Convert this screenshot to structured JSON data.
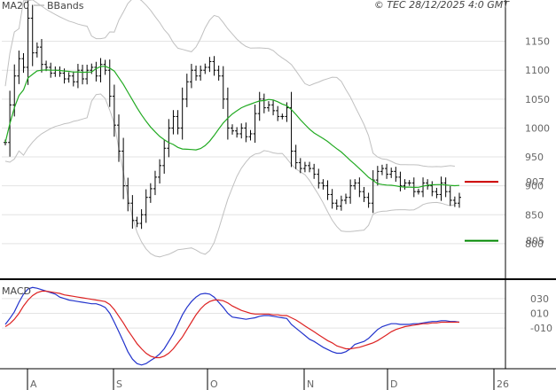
{
  "header": {
    "legend_ma": "MA20",
    "legend_bb": "BBands",
    "copyright": "© TEC 28/12/2025 4:0 GMT"
  },
  "colors": {
    "background": "#ffffff",
    "grid": "#e3e3e3",
    "price_bar": "#000000",
    "ma": "#22aa22",
    "bbands": "#c0c0c0",
    "macd": "#2233cc",
    "signal": "#dd2222",
    "resistance": "#cc0000",
    "support": "#008800",
    "axis": "#000000"
  },
  "chart_data": [
    {
      "type": "ohlc",
      "legend": [
        "MA20",
        "BBands"
      ],
      "ylim": [
        740,
        1200
      ],
      "y_ticks": [
        800,
        850,
        900,
        950,
        1000,
        1050,
        1100,
        1150
      ],
      "x_labels": [
        "A",
        "S",
        "O",
        "N",
        "D",
        "26"
      ],
      "grid": "horizontal",
      "markers": [
        {
          "label": "907",
          "value": 907,
          "color": "#cc0000"
        },
        {
          "label": "805",
          "value": 805,
          "color": "#008800"
        }
      ],
      "close": [
        975,
        1040,
        1090,
        1120,
        1105,
        1190,
        1130,
        1140,
        1110,
        1105,
        1095,
        1100,
        1095,
        1085,
        1090,
        1080,
        1100,
        1085,
        1100,
        1105,
        1090,
        1110,
        1100,
        1055,
        1005,
        960,
        900,
        870,
        840,
        835,
        850,
        880,
        895,
        915,
        935,
        965,
        1000,
        1020,
        1000,
        1050,
        1080,
        1100,
        1090,
        1100,
        1105,
        1115,
        1100,
        1090,
        1050,
        1000,
        995,
        990,
        1000,
        985,
        990,
        1025,
        1050,
        1035,
        1040,
        1030,
        1020,
        1020,
        1035,
        960,
        940,
        930,
        935,
        930,
        920,
        905,
        900,
        885,
        870,
        865,
        875,
        880,
        900,
        905,
        890,
        880,
        870,
        910,
        925,
        930,
        920,
        925,
        915,
        900,
        905,
        905,
        890,
        890,
        905,
        900,
        890,
        885,
        905,
        890,
        875,
        870,
        880
      ]
    },
    {
      "type": "line",
      "title": "MACD",
      "ylim": [
        -65,
        55
      ],
      "y_ticks": [
        30,
        10,
        -10
      ],
      "y_tick_labels": [
        "030",
        "010",
        "-010"
      ],
      "series": [
        {
          "name": "MACD",
          "values": [
            -5,
            3,
            12,
            25,
            36,
            43,
            45,
            44,
            42,
            40,
            38,
            36,
            32,
            30,
            28,
            27,
            26,
            25,
            24,
            23,
            23,
            21,
            18,
            10,
            -2,
            -15,
            -28,
            -42,
            -52,
            -58,
            -60,
            -58,
            -54,
            -50,
            -45,
            -38,
            -28,
            -18,
            -5,
            8,
            18,
            26,
            32,
            36,
            37,
            36,
            32,
            25,
            18,
            10,
            5,
            4,
            3,
            2,
            3,
            4,
            6,
            7,
            7,
            6,
            5,
            4,
            3,
            -5,
            -10,
            -15,
            -20,
            -25,
            -28,
            -32,
            -36,
            -39,
            -42,
            -44,
            -44,
            -42,
            -38,
            -32,
            -30,
            -28,
            -24,
            -18,
            -12,
            -8,
            -6,
            -4,
            -4,
            -5,
            -5,
            -5,
            -4,
            -4,
            -3,
            -2,
            -1,
            -1,
            0,
            0,
            -1,
            -1,
            -2
          ]
        },
        {
          "name": "Signal",
          "values": [
            -8,
            -4,
            2,
            10,
            20,
            28,
            34,
            38,
            40,
            40,
            39,
            38,
            37,
            35,
            34,
            33,
            32,
            31,
            30,
            29,
            28,
            27,
            26,
            22,
            15,
            6,
            -3,
            -13,
            -22,
            -31,
            -38,
            -44,
            -48,
            -50,
            -50,
            -48,
            -44,
            -38,
            -30,
            -22,
            -12,
            -2,
            8,
            16,
            22,
            26,
            28,
            28,
            27,
            24,
            20,
            17,
            14,
            12,
            10,
            9,
            9,
            9,
            9,
            8,
            8,
            7,
            7,
            4,
            1,
            -3,
            -7,
            -11,
            -15,
            -19,
            -23,
            -27,
            -30,
            -34,
            -36,
            -38,
            -38,
            -37,
            -36,
            -34,
            -32,
            -30,
            -27,
            -23,
            -19,
            -15,
            -12,
            -10,
            -8,
            -7,
            -6,
            -5,
            -4,
            -4,
            -3,
            -3,
            -2,
            -2,
            -2,
            -2,
            -2
          ]
        }
      ]
    }
  ]
}
